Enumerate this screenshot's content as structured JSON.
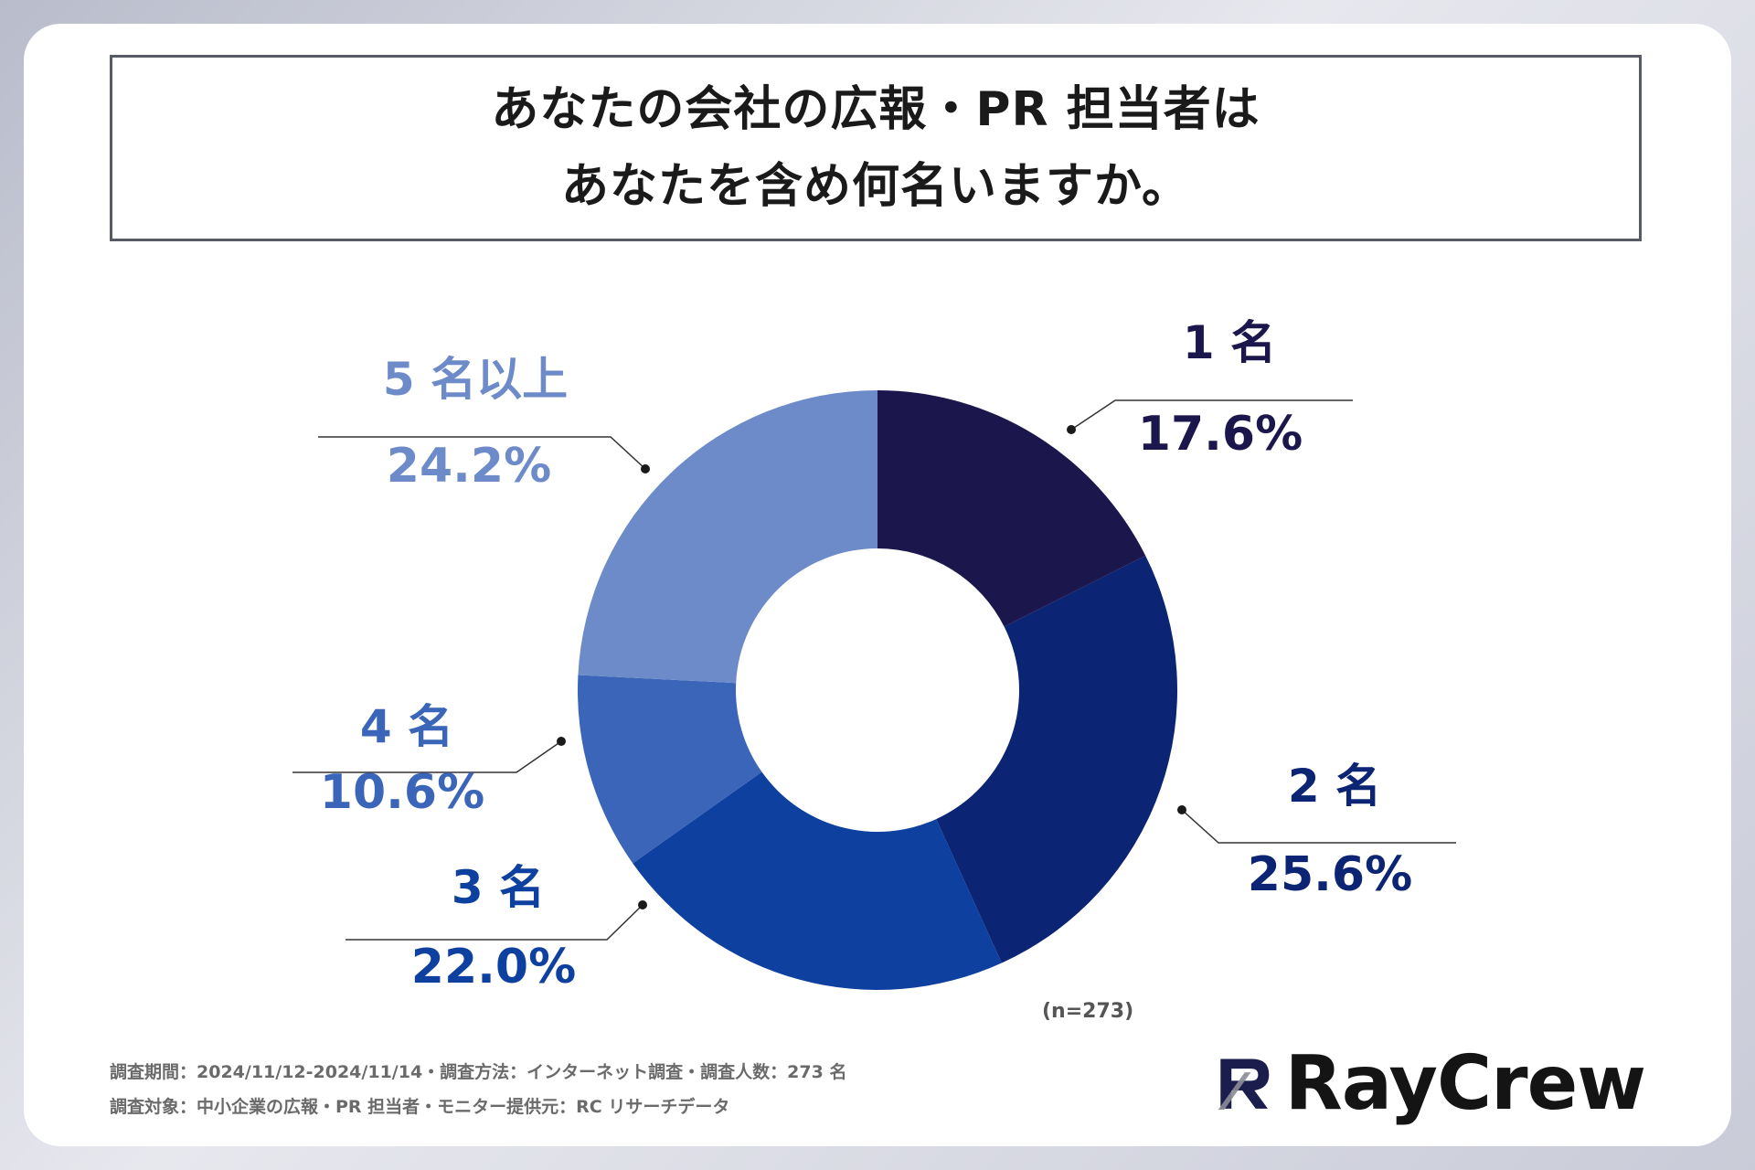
{
  "title": {
    "line1": "あなたの会社の広報・PR 担当者は",
    "line2": "あなたを含め何名いますか。"
  },
  "chart_data": {
    "type": "pie",
    "categories": [
      "1 名",
      "2 名",
      "3 名",
      "4 名",
      "5 名以上"
    ],
    "values": [
      17.6,
      25.6,
      22.0,
      10.6,
      24.2
    ],
    "value_labels": [
      "17.6%",
      "25.6%",
      "22.0%",
      "10.6%",
      "24.2%"
    ],
    "colors": [
      "#1b164b",
      "#0b2473",
      "#0e40a0",
      "#3a65b8",
      "#6d8bc9"
    ],
    "donut": true
  },
  "sample_size": "(n=273)",
  "footer": {
    "line1": "調査期間：2024/11/12-2024/11/14・調査方法：インターネット調査・調査人数：273 名",
    "line2": "調査対象：中小企業の広報・PR 担当者・モニター提供元：RC リサーチデータ"
  },
  "logo": {
    "text": "RayCrew",
    "mark_letter": "R",
    "mark_colors": [
      "#1b1d4d",
      "#8c8c96"
    ]
  }
}
